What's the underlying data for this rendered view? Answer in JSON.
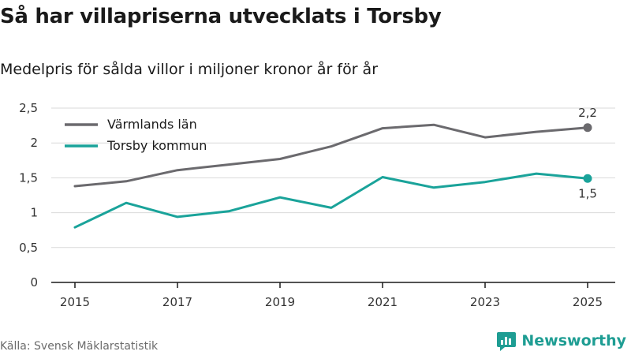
{
  "title": "Så har villapriserna utvecklats i Torsby",
  "subtitle": "Medelpris för sålda villor i miljoner kronor år för år",
  "source": "Källa: Svensk Mäklarstatistik",
  "brand": {
    "name": "Newsworthy",
    "icon": "newsworthy-logo-icon"
  },
  "colors": {
    "varmland": "#6b6a6e",
    "torsby": "#1aa39a",
    "grid": "#d9d9d9",
    "axis": "#1a1a1a",
    "brand": "#1e9d93"
  },
  "chart_data": {
    "type": "line",
    "x": [
      2015,
      2016,
      2017,
      2018,
      2019,
      2020,
      2021,
      2022,
      2023,
      2024,
      2025
    ],
    "series": [
      {
        "name": "Värmlands län",
        "values": [
          1.38,
          1.45,
          1.61,
          1.69,
          1.77,
          1.95,
          2.21,
          2.26,
          2.08,
          2.16,
          2.22
        ],
        "end_label": "2,2"
      },
      {
        "name": "Torsby kommun",
        "values": [
          0.79,
          1.14,
          0.94,
          1.02,
          1.22,
          1.07,
          1.51,
          1.36,
          1.44,
          1.56,
          1.49
        ],
        "end_label": "1,5"
      }
    ],
    "ylim": [
      0,
      2.5
    ],
    "yticks": [
      0,
      0.5,
      1,
      1.5,
      2,
      2.5
    ],
    "ytick_labels": [
      "0",
      "0,5",
      "1",
      "1,5",
      "2",
      "2,5"
    ],
    "xticks": [
      2015,
      2017,
      2019,
      2021,
      2023,
      2025
    ],
    "xtick_labels": [
      "2015",
      "2017",
      "2019",
      "2021",
      "2023",
      "2025"
    ],
    "legend_position": "top-left",
    "grid": true,
    "title": "Så har villapriserna utvecklats i Torsby",
    "xlabel": "",
    "ylabel": ""
  }
}
